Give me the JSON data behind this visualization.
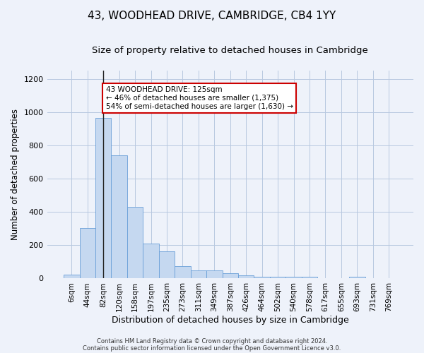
{
  "title": "43, WOODHEAD DRIVE, CAMBRIDGE, CB4 1YY",
  "subtitle": "Size of property relative to detached houses in Cambridge",
  "xlabel": "Distribution of detached houses by size in Cambridge",
  "ylabel": "Number of detached properties",
  "footer_line1": "Contains HM Land Registry data © Crown copyright and database right 2024.",
  "footer_line2": "Contains public sector information licensed under the Open Government Licence v3.0.",
  "bar_labels": [
    "6sqm",
    "44sqm",
    "82sqm",
    "120sqm",
    "158sqm",
    "197sqm",
    "235sqm",
    "273sqm",
    "311sqm",
    "349sqm",
    "387sqm",
    "426sqm",
    "464sqm",
    "502sqm",
    "540sqm",
    "578sqm",
    "617sqm",
    "655sqm",
    "693sqm",
    "731sqm",
    "769sqm"
  ],
  "bar_values": [
    25,
    305,
    965,
    740,
    430,
    210,
    165,
    75,
    48,
    48,
    30,
    18,
    12,
    10,
    10,
    10,
    0,
    0,
    12,
    0,
    0
  ],
  "bar_color": "#c5d8f0",
  "bar_edgecolor": "#6a9fd8",
  "property_label": "43 WOODHEAD DRIVE: 125sqm",
  "annotation_line1": "← 46% of detached houses are smaller (1,375)",
  "annotation_line2": "54% of semi-detached houses are larger (1,630) →",
  "vline_bar_index": 2,
  "ylim": [
    0,
    1250
  ],
  "yticks": [
    0,
    200,
    400,
    600,
    800,
    1000,
    1200
  ],
  "bg_color": "#eef2fa",
  "annotation_box_edgecolor": "#cc0000",
  "annotation_box_facecolor": "#ffffff",
  "title_fontsize": 11,
  "subtitle_fontsize": 9.5,
  "axis_label_fontsize": 8.5,
  "tick_fontsize": 7.5,
  "footer_fontsize": 6,
  "annotation_fontsize": 7.5
}
